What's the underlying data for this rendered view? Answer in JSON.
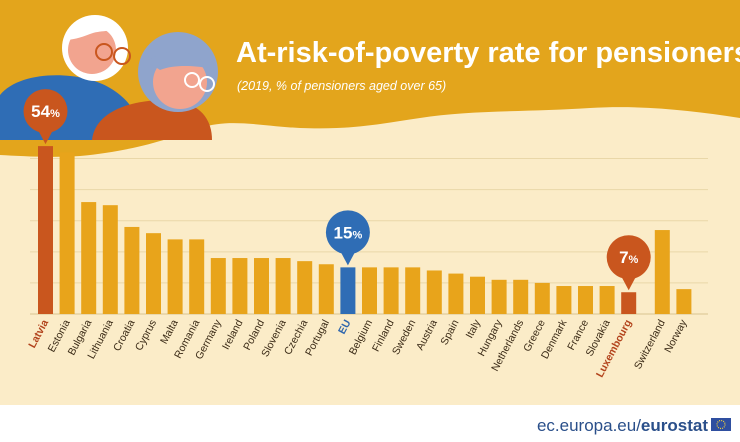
{
  "header": {
    "title": "At-risk-of-poverty rate for pensioners",
    "subtitle": "(2019, % of pensioners aged over 65)"
  },
  "footer": {
    "source_prefix": "ec.europa.eu/",
    "source_brand": "eurostat"
  },
  "callouts": [
    {
      "category": "Latvia",
      "value_text": "54",
      "unit": "%",
      "color": "#c9561e"
    },
    {
      "category": "EU",
      "value_text": "15",
      "unit": "%",
      "color": "#2f6db5"
    },
    {
      "category": "Luxembourg",
      "value_text": "7",
      "unit": "%",
      "color": "#c9561e"
    }
  ],
  "colors": {
    "bar": "#e8a41b",
    "highlight": "#c9561e",
    "eu": "#2f6db5",
    "panel": "#fbecc8",
    "header": "#e3a51c"
  },
  "chart_data": {
    "type": "bar",
    "title": "At-risk-of-poverty rate for pensioners",
    "subtitle": "(2019, % of pensioners aged over 65)",
    "ylim": [
      0,
      55
    ],
    "grid": true,
    "categories": [
      "Latvia",
      "Estonia",
      "Bulgaria",
      "Lithuania",
      "Croatia",
      "Cyprus",
      "Malta",
      "Romania",
      "Germany",
      "Ireland",
      "Poland",
      "Slovenia",
      "Czechia",
      "Portugal",
      "EU",
      "Belgium",
      "Finland",
      "Sweden",
      "Austria",
      "Spain",
      "Italy",
      "Hungary",
      "Netherlands",
      "Greece",
      "Denmark",
      "France",
      "Slovakia",
      "Luxembourg",
      "Switzerland",
      "Norway"
    ],
    "values": [
      54,
      52,
      36,
      35,
      28,
      26,
      24,
      24,
      18,
      18,
      18,
      18,
      17,
      16,
      15,
      15,
      15,
      15,
      14,
      13,
      12,
      11,
      11,
      10,
      9,
      9,
      9,
      7,
      27,
      8
    ],
    "highlight": {
      "Latvia": "#c9561e",
      "EU": "#2f6db5",
      "Luxembourg": "#c9561e"
    },
    "bold_labels": [
      "Latvia",
      "EU",
      "Luxembourg"
    ]
  }
}
